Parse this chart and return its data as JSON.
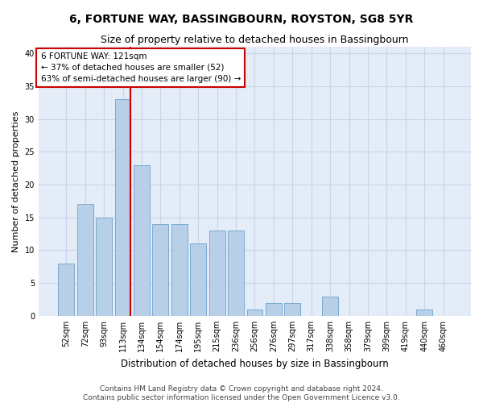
{
  "title": "6, FORTUNE WAY, BASSINGBOURN, ROYSTON, SG8 5YR",
  "subtitle": "Size of property relative to detached houses in Bassingbourn",
  "xlabel": "Distribution of detached houses by size in Bassingbourn",
  "ylabel": "Number of detached properties",
  "categories": [
    "52sqm",
    "72sqm",
    "93sqm",
    "113sqm",
    "134sqm",
    "154sqm",
    "174sqm",
    "195sqm",
    "215sqm",
    "236sqm",
    "256sqm",
    "276sqm",
    "297sqm",
    "317sqm",
    "338sqm",
    "358sqm",
    "379sqm",
    "399sqm",
    "419sqm",
    "440sqm",
    "460sqm"
  ],
  "values": [
    8,
    17,
    15,
    33,
    23,
    14,
    14,
    11,
    13,
    13,
    1,
    2,
    2,
    0,
    3,
    0,
    0,
    0,
    0,
    1,
    0
  ],
  "bar_color": "#b8cfe8",
  "bar_edge_color": "#7aaad0",
  "vline_color": "#cc0000",
  "vline_xindex": 3,
  "annotation_text": "6 FORTUNE WAY: 121sqm\n← 37% of detached houses are smaller (52)\n63% of semi-detached houses are larger (90) →",
  "annotation_box_facecolor": "#ffffff",
  "annotation_box_edgecolor": "#cc0000",
  "ylim": [
    0,
    41
  ],
  "yticks": [
    0,
    5,
    10,
    15,
    20,
    25,
    30,
    35,
    40
  ],
  "grid_color": "#c8d4e8",
  "bg_color": "#e4ecf7",
  "footer_text": "Contains HM Land Registry data © Crown copyright and database right 2024.\nContains public sector information licensed under the Open Government Licence v3.0.",
  "title_fontsize": 10,
  "subtitle_fontsize": 9,
  "xlabel_fontsize": 8.5,
  "ylabel_fontsize": 8,
  "tick_fontsize": 7,
  "annot_fontsize": 7.5,
  "footer_fontsize": 6.5
}
